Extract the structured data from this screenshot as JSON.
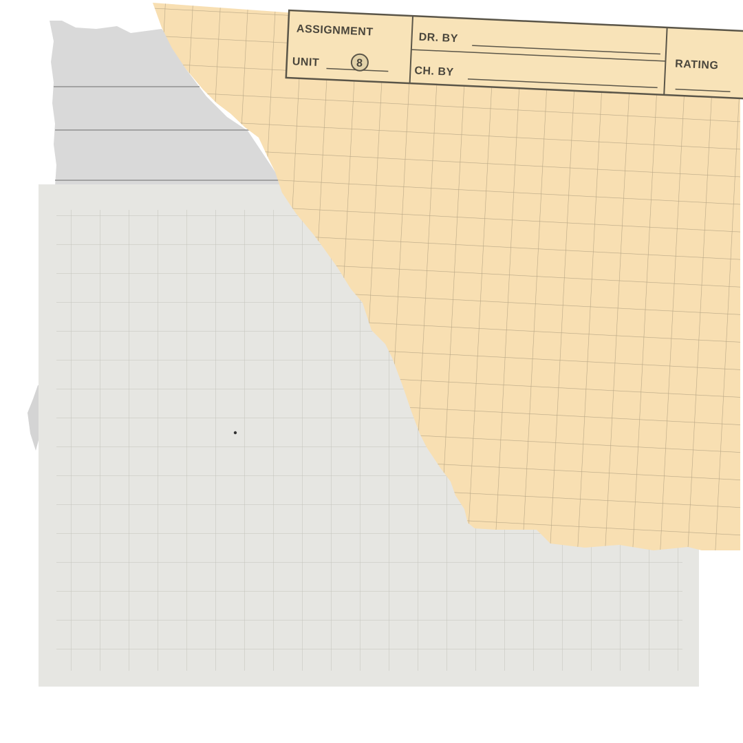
{
  "title_block": {
    "assignment_label": "ASSIGNMENT",
    "unit_label": "UNIT",
    "unit_number": "8",
    "drawn_by_label": "DR. BY",
    "checked_by_label": "CH. BY",
    "rating_label": "RATING"
  },
  "colors": {
    "background": "#ffffff",
    "lined_paper": "#d9d9d9",
    "lined_paper_rule": "#8f8f8f",
    "grid_paper": "#e6e6e2",
    "grid_paper_line": "#bdbdb6",
    "yellow_paper": "#f8e1b3",
    "yellow_paper_grid": "#9a8e72",
    "title_block_ink": "#4a463c"
  }
}
